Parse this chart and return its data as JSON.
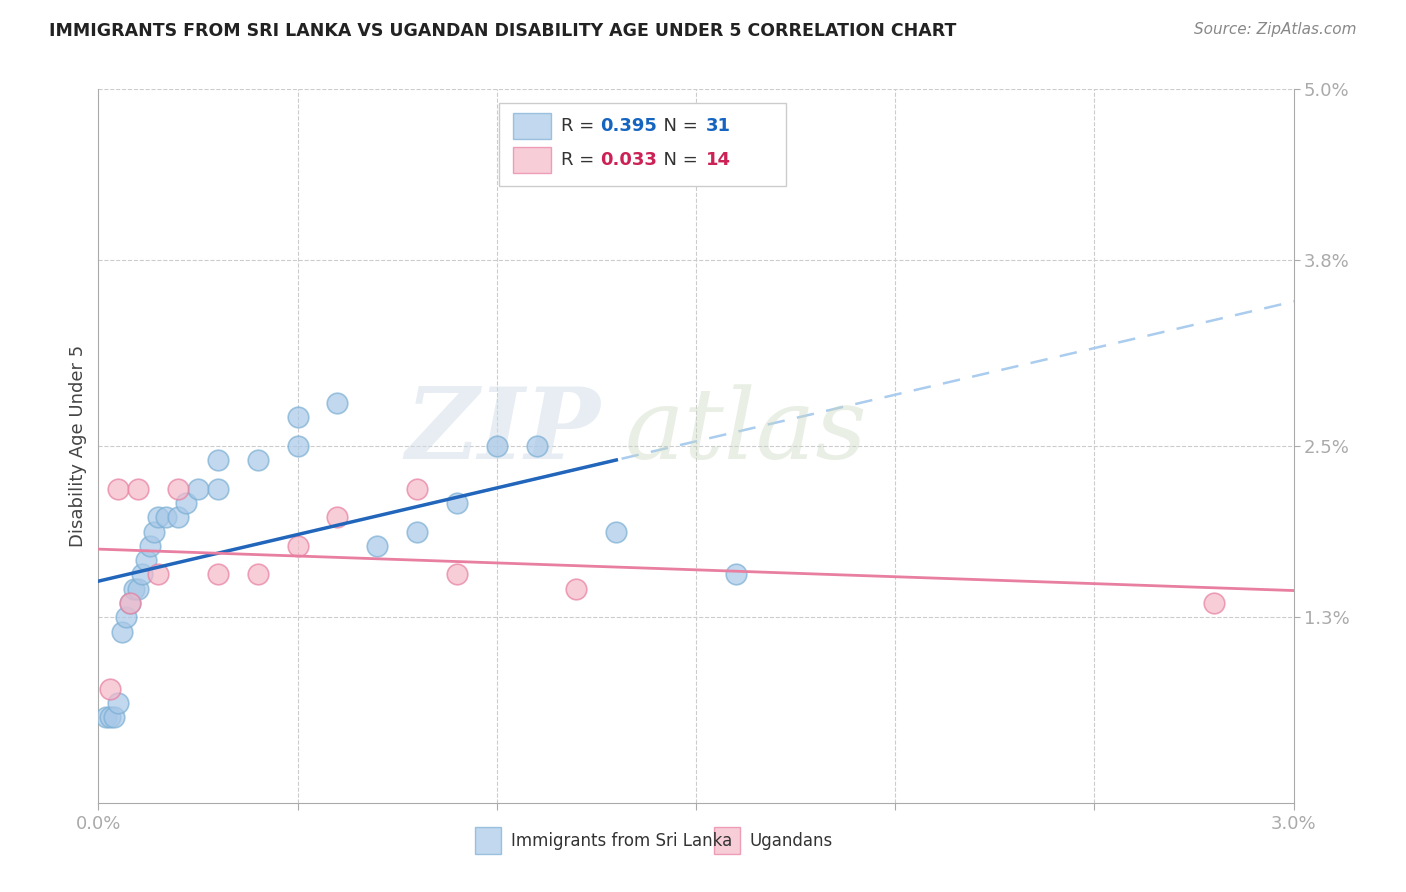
{
  "title": "IMMIGRANTS FROM SRI LANKA VS UGANDAN DISABILITY AGE UNDER 5 CORRELATION CHART",
  "source": "Source: ZipAtlas.com",
  "ylabel": "Disability Age Under 5",
  "xlim": [
    0.0,
    0.03
  ],
  "ylim": [
    0.0,
    0.05
  ],
  "sri_lanka_R": 0.395,
  "sri_lanka_N": 31,
  "uganda_R": 0.033,
  "uganda_N": 14,
  "sri_lanka_color": "#a8c8e8",
  "sri_lanka_edge_color": "#7bafd4",
  "uganda_color": "#f4b8c8",
  "uganda_edge_color": "#e87fa0",
  "sri_lanka_line_color": "#2266bb",
  "uganda_line_color": "#e87fa0",
  "sri_lanka_dashed_color": "#aaccee",
  "background_color": "#ffffff",
  "grid_color": "#cccccc",
  "y_tick_positions": [
    0.013,
    0.025,
    0.038,
    0.05
  ],
  "y_tick_labels": [
    "1.3%",
    "2.5%",
    "3.8%",
    "5.0%"
  ],
  "x_tick_positions": [
    0.0,
    0.005,
    0.01,
    0.015,
    0.02,
    0.025,
    0.03
  ],
  "x_tick_labels": [
    "0.0%",
    "",
    "",
    "",
    "",
    "",
    "3.0%"
  ],
  "sri_lanka_x": [
    0.0002,
    0.0003,
    0.0004,
    0.0005,
    0.0006,
    0.0007,
    0.0008,
    0.0009,
    0.001,
    0.0011,
    0.0012,
    0.0013,
    0.0014,
    0.0015,
    0.0017,
    0.002,
    0.0022,
    0.0025,
    0.003,
    0.003,
    0.004,
    0.005,
    0.005,
    0.006,
    0.007,
    0.008,
    0.009,
    0.01,
    0.011,
    0.013,
    0.016
  ],
  "sri_lanka_y": [
    0.006,
    0.006,
    0.006,
    0.007,
    0.012,
    0.013,
    0.014,
    0.015,
    0.015,
    0.016,
    0.017,
    0.018,
    0.019,
    0.02,
    0.02,
    0.02,
    0.021,
    0.022,
    0.022,
    0.024,
    0.024,
    0.025,
    0.027,
    0.028,
    0.018,
    0.019,
    0.021,
    0.025,
    0.025,
    0.019,
    0.016
  ],
  "uganda_x": [
    0.0003,
    0.0005,
    0.0008,
    0.001,
    0.0015,
    0.002,
    0.003,
    0.004,
    0.005,
    0.006,
    0.008,
    0.009,
    0.012,
    0.028
  ],
  "uganda_y": [
    0.008,
    0.022,
    0.014,
    0.022,
    0.016,
    0.022,
    0.016,
    0.016,
    0.018,
    0.02,
    0.022,
    0.016,
    0.015,
    0.014
  ],
  "watermark_zip": "ZIP",
  "watermark_atlas": "atlas"
}
